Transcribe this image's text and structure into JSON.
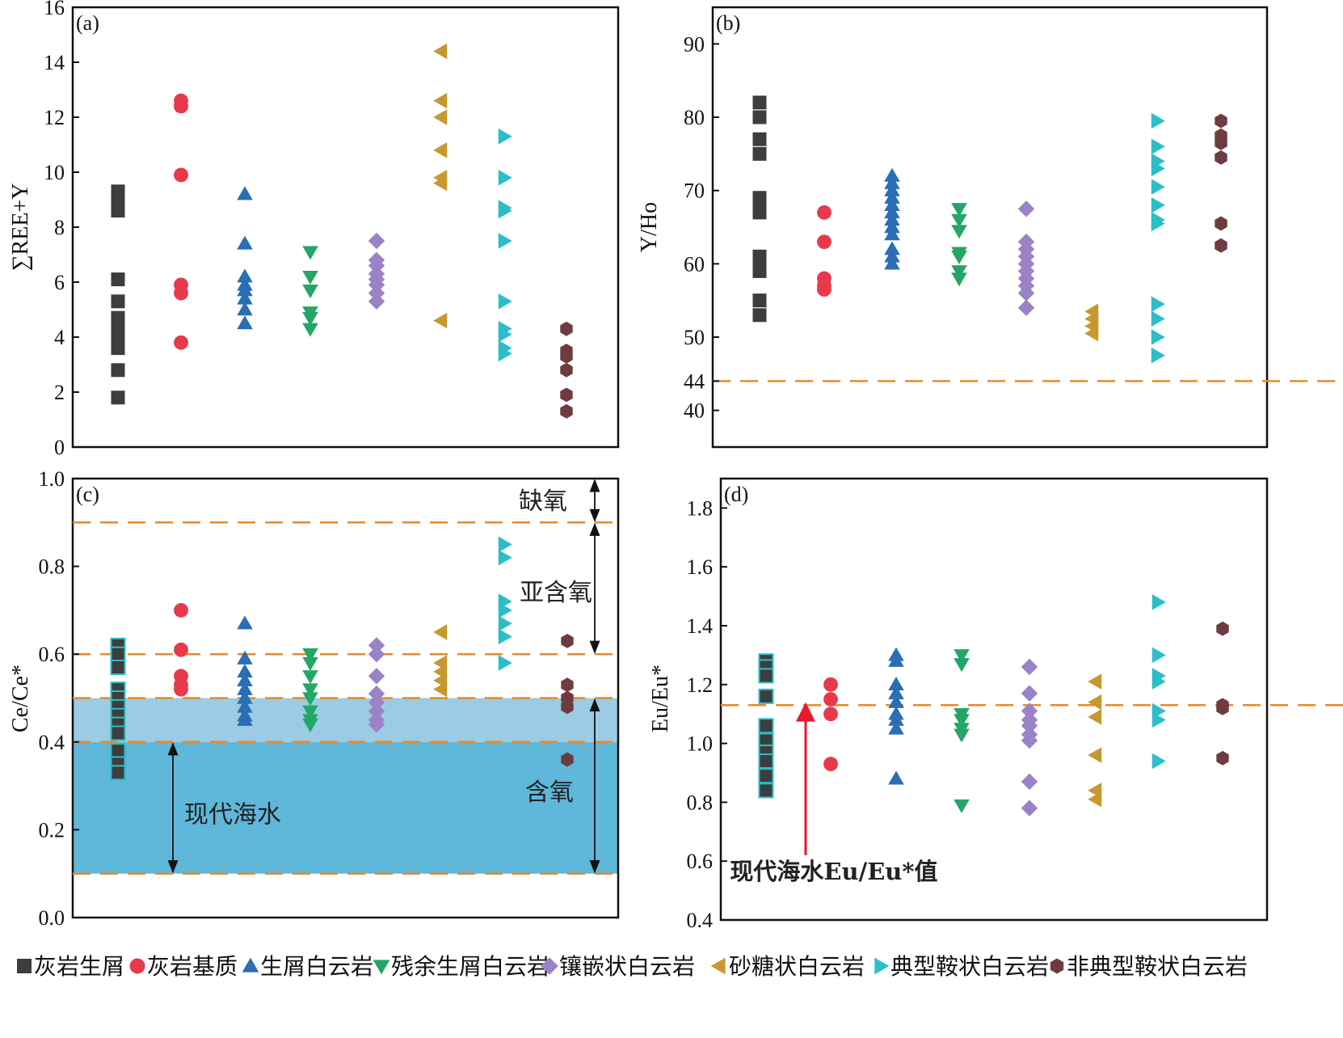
{
  "legend": {
    "items": [
      {
        "label": "灰岩生屑",
        "shape": "square",
        "color": "#3d3d3d"
      },
      {
        "label": "灰岩基质",
        "shape": "circle",
        "color": "#e8394a"
      },
      {
        "label": "生屑白云岩",
        "shape": "triangle-up",
        "color": "#2a6eb5"
      },
      {
        "label": "残余生屑白云岩",
        "shape": "triangle-down",
        "color": "#23a667"
      },
      {
        "label": "镶嵌状白云岩",
        "shape": "diamond",
        "color": "#9b82c6"
      },
      {
        "label": "砂糖状白云岩",
        "shape": "triangle-left",
        "color": "#c7982f"
      },
      {
        "label": "典型鞍状白云岩",
        "shape": "triangle-right",
        "color": "#2bbec8"
      },
      {
        "label": "非典型鞍状白云岩",
        "shape": "hexagon",
        "color": "#6e3b3f"
      }
    ]
  },
  "colors": {
    "ref_line": "#e88a2c",
    "band_light": "#9bcce3",
    "band_dark": "#5fb7da",
    "arrow_red": "#e8192c"
  },
  "chart_data": [
    {
      "type": "scatter",
      "panel_label": "(a)",
      "ylabel": "∑REE+Y",
      "ylim": [
        0,
        16
      ],
      "yticks": [
        0,
        2,
        4,
        6,
        8,
        10,
        12,
        14,
        16
      ],
      "series": [
        {
          "values": [
            9.3,
            9.0,
            8.6,
            6.1,
            5.3,
            4.7,
            4.4,
            4.0,
            3.6,
            2.8,
            1.8
          ]
        },
        {
          "values": [
            12.6,
            12.4,
            9.9,
            5.9,
            5.6,
            3.8
          ]
        },
        {
          "values": [
            9.2,
            7.4,
            6.2,
            5.9,
            5.7,
            5.4,
            5.0,
            4.5
          ]
        },
        {
          "values": [
            7.1,
            6.2,
            5.7,
            4.9,
            4.7,
            4.3
          ]
        },
        {
          "values": [
            7.5,
            6.8,
            6.6,
            6.3,
            6.1,
            5.9,
            5.6,
            5.3
          ]
        },
        {
          "values": [
            14.4,
            12.6,
            12.0,
            10.8,
            9.8,
            9.6,
            4.6
          ]
        },
        {
          "values": [
            11.3,
            9.8,
            8.7,
            8.6,
            7.5,
            5.3,
            4.3,
            4.1,
            3.6,
            3.4
          ]
        },
        {
          "values": [
            4.3,
            3.5,
            3.3,
            2.8,
            1.9,
            1.3
          ]
        }
      ]
    },
    {
      "type": "scatter",
      "panel_label": "(b)",
      "ylabel": "Y/Ho",
      "ylim": [
        35,
        95
      ],
      "yticks": [
        40,
        44,
        50,
        60,
        70,
        80,
        90
      ],
      "reference_line": 44,
      "series": [
        {
          "values": [
            82,
            80,
            77,
            75,
            69,
            68,
            67,
            61,
            60,
            59,
            55,
            53
          ]
        },
        {
          "values": [
            67,
            63,
            58,
            57,
            56.5
          ]
        },
        {
          "values": [
            72,
            71,
            70,
            69,
            68,
            67,
            66,
            65,
            64,
            62,
            61,
            60
          ]
        },
        {
          "values": [
            67.5,
            66,
            64.5,
            61.5,
            61,
            59,
            58
          ]
        },
        {
          "values": [
            67.5,
            63,
            62,
            61,
            60,
            59,
            58,
            57,
            56,
            54
          ]
        },
        {
          "values": [
            53.5,
            52.5,
            51.5,
            50.5
          ]
        },
        {
          "values": [
            79.5,
            76,
            74,
            73,
            70.5,
            68,
            66,
            65.5,
            54.5,
            52.5,
            50,
            47.5
          ]
        },
        {
          "values": [
            79.5,
            77.5,
            76.5,
            74.5,
            65.5,
            62.5
          ]
        }
      ]
    },
    {
      "type": "scatter",
      "panel_label": "(c)",
      "ylabel": "Ce/Ce*",
      "ylim": [
        0,
        1.0
      ],
      "yticks": [
        0.0,
        0.2,
        0.4,
        0.6,
        0.8,
        1.0
      ],
      "reference_lines": [
        0.1,
        0.4,
        0.5,
        0.6,
        0.9
      ],
      "bands": [
        {
          "from": 0.1,
          "to": 0.4,
          "label": "现代海水"
        },
        {
          "from": 0.4,
          "to": 0.5
        }
      ],
      "region_labels": [
        "缺氧",
        "亚含氧",
        "含氧"
      ],
      "series": [
        {
          "values": [
            0.62,
            0.6,
            0.57,
            0.52,
            0.5,
            0.48,
            0.46,
            0.44,
            0.42,
            0.38,
            0.35,
            0.33
          ]
        },
        {
          "values": [
            0.7,
            0.61,
            0.55,
            0.53,
            0.52
          ]
        },
        {
          "values": [
            0.67,
            0.59,
            0.56,
            0.54,
            0.52,
            0.5,
            0.48,
            0.46,
            0.45
          ]
        },
        {
          "values": [
            0.6,
            0.58,
            0.55,
            0.52,
            0.5,
            0.47,
            0.45,
            0.44
          ]
        },
        {
          "values": [
            0.62,
            0.6,
            0.55,
            0.51,
            0.49,
            0.47,
            0.45,
            0.44
          ]
        },
        {
          "values": [
            0.65,
            0.58,
            0.56,
            0.54,
            0.52
          ]
        },
        {
          "values": [
            0.85,
            0.82,
            0.72,
            0.7,
            0.67,
            0.64,
            0.58
          ]
        },
        {
          "values": [
            0.63,
            0.53,
            0.5,
            0.48,
            0.36
          ]
        }
      ]
    },
    {
      "type": "scatter",
      "panel_label": "(d)",
      "ylabel": "Eu/Eu*",
      "ylim": [
        0.4,
        1.9
      ],
      "yticks": [
        0.4,
        0.6,
        0.8,
        1.0,
        1.2,
        1.4,
        1.6,
        1.8
      ],
      "reference_line": 1.13,
      "annotation": "现代海水Eu/Eu*值",
      "series": [
        {
          "values": [
            1.28,
            1.26,
            1.23,
            1.16,
            1.06,
            1.01,
            0.97,
            0.94,
            0.89,
            0.84
          ]
        },
        {
          "values": [
            1.2,
            1.15,
            1.1,
            0.93
          ]
        },
        {
          "values": [
            1.3,
            1.28,
            1.2,
            1.17,
            1.14,
            1.1,
            1.08,
            1.05,
            0.88
          ]
        },
        {
          "values": [
            1.3,
            1.27,
            1.1,
            1.08,
            1.05,
            1.03,
            0.79
          ]
        },
        {
          "values": [
            1.26,
            1.17,
            1.11,
            1.08,
            1.06,
            1.03,
            1.01,
            0.87,
            0.78
          ]
        },
        {
          "values": [
            1.21,
            1.14,
            1.09,
            0.96,
            0.84,
            0.81
          ]
        },
        {
          "values": [
            1.48,
            1.3,
            1.23,
            1.21,
            1.11,
            1.08,
            0.94
          ]
        },
        {
          "values": [
            1.39,
            1.13,
            1.12,
            0.95
          ]
        }
      ]
    }
  ]
}
